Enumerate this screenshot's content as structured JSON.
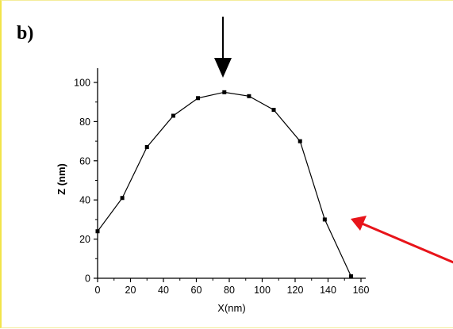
{
  "panel_label": "b)",
  "chart_data": {
    "type": "line",
    "title": "",
    "xlabel": "X(nm)",
    "ylabel": "Z (nm)",
    "xlim": [
      0,
      165
    ],
    "ylim": [
      0,
      110
    ],
    "xticks": [
      "0",
      "20",
      "40",
      "60",
      "80",
      "100",
      "120",
      "140",
      "160"
    ],
    "yticks": [
      "0",
      "20",
      "40",
      "60",
      "80",
      "100"
    ],
    "x": [
      0,
      15,
      30,
      46,
      61,
      77,
      92,
      107,
      123,
      138,
      154
    ],
    "y": [
      24,
      41,
      67,
      83,
      92,
      95,
      93,
      86,
      70,
      30,
      1
    ],
    "markers": "square",
    "grid": false,
    "annotations": [
      {
        "type": "arrow-down",
        "color": "#000000",
        "target_x": 80
      },
      {
        "type": "arrow",
        "color": "#e8141a"
      }
    ]
  }
}
